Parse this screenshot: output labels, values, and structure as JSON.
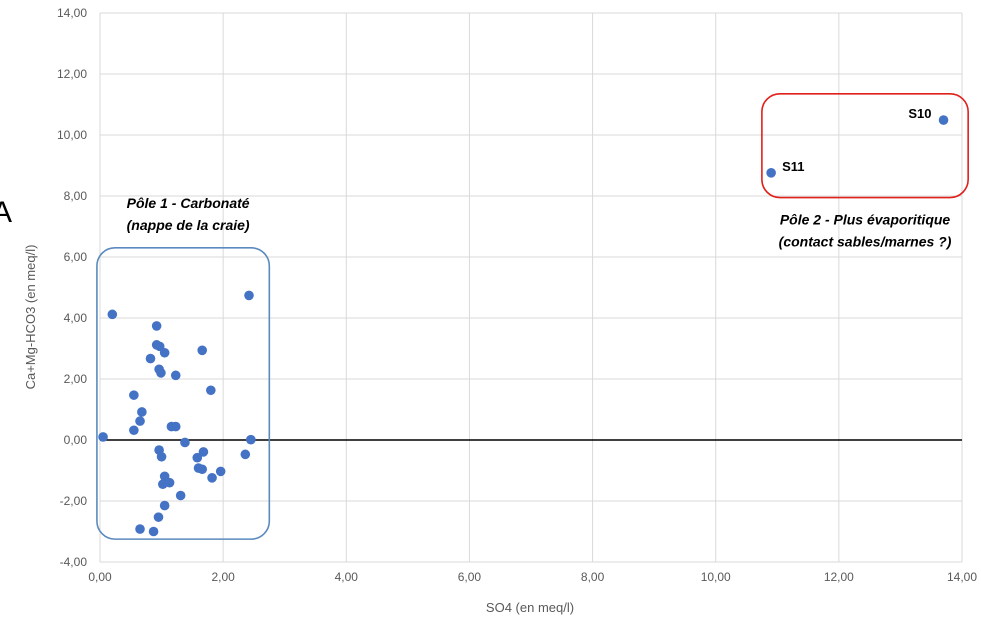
{
  "chart_data": {
    "type": "scatter",
    "xlabel": "SO4  (en meq/l)",
    "ylabel": "Ca+Mg-HCO3 (en meq/l)",
    "xlim": [
      0,
      14
    ],
    "ylim": [
      -4,
      14
    ],
    "x_ticks": [
      "0,00",
      "2,00",
      "4,00",
      "6,00",
      "8,00",
      "10,00",
      "12,00",
      "14,00"
    ],
    "y_ticks": [
      "-4,00",
      "-2,00",
      "0,00",
      "2,00",
      "4,00",
      "6,00",
      "8,00",
      "10,00",
      "12,00",
      "14,00"
    ],
    "grid": true,
    "zero_line": true,
    "marker_color": "#4472C4",
    "panel_letter": "A",
    "points": [
      {
        "x": 0.05,
        "y": 0.1
      },
      {
        "x": 0.2,
        "y": 4.12
      },
      {
        "x": 0.55,
        "y": 1.47
      },
      {
        "x": 0.55,
        "y": 0.32
      },
      {
        "x": 0.65,
        "y": 0.62
      },
      {
        "x": 0.68,
        "y": 0.92
      },
      {
        "x": 0.65,
        "y": -2.92
      },
      {
        "x": 0.82,
        "y": 2.67
      },
      {
        "x": 0.87,
        "y": -3.0
      },
      {
        "x": 0.92,
        "y": 3.74
      },
      {
        "x": 0.92,
        "y": 3.12
      },
      {
        "x": 0.97,
        "y": 3.07
      },
      {
        "x": 0.96,
        "y": 2.32
      },
      {
        "x": 0.99,
        "y": 2.2
      },
      {
        "x": 0.96,
        "y": -0.33
      },
      {
        "x": 1.0,
        "y": -0.55
      },
      {
        "x": 0.95,
        "y": -2.53
      },
      {
        "x": 1.05,
        "y": 2.86
      },
      {
        "x": 1.05,
        "y": -1.19
      },
      {
        "x": 1.02,
        "y": -1.45
      },
      {
        "x": 1.05,
        "y": -2.15
      },
      {
        "x": 1.13,
        "y": -1.4
      },
      {
        "x": 1.16,
        "y": 0.44
      },
      {
        "x": 1.23,
        "y": 0.44
      },
      {
        "x": 1.23,
        "y": 2.12
      },
      {
        "x": 1.31,
        "y": -1.82
      },
      {
        "x": 1.38,
        "y": -0.08
      },
      {
        "x": 1.58,
        "y": -0.58
      },
      {
        "x": 1.6,
        "y": -0.92
      },
      {
        "x": 1.66,
        "y": -0.96
      },
      {
        "x": 1.66,
        "y": 2.94
      },
      {
        "x": 1.68,
        "y": -0.39
      },
      {
        "x": 1.8,
        "y": 1.63
      },
      {
        "x": 1.82,
        "y": -1.24
      },
      {
        "x": 1.96,
        "y": -1.03
      },
      {
        "x": 2.36,
        "y": -0.47
      },
      {
        "x": 2.42,
        "y": 4.74
      },
      {
        "x": 2.45,
        "y": 0.01
      },
      {
        "x": 10.9,
        "y": 8.76,
        "label": "S11"
      },
      {
        "x": 13.7,
        "y": 10.49,
        "label": "S10"
      }
    ],
    "groups": [
      {
        "line1": "Pôle 1 - Carbonaté",
        "line2": "(nappe de la craie)",
        "color": "#5B8ABF",
        "xmin": -0.05,
        "xmax": 2.75,
        "ymin": -3.25,
        "ymax": 6.3
      },
      {
        "line1": "Pôle 2 - Plus évaporitique",
        "line2": "(contact sables/marnes ?)",
        "color": "#E0201B",
        "xmin": 10.75,
        "xmax": 14.1,
        "ymin": 7.95,
        "ymax": 11.35
      }
    ]
  }
}
